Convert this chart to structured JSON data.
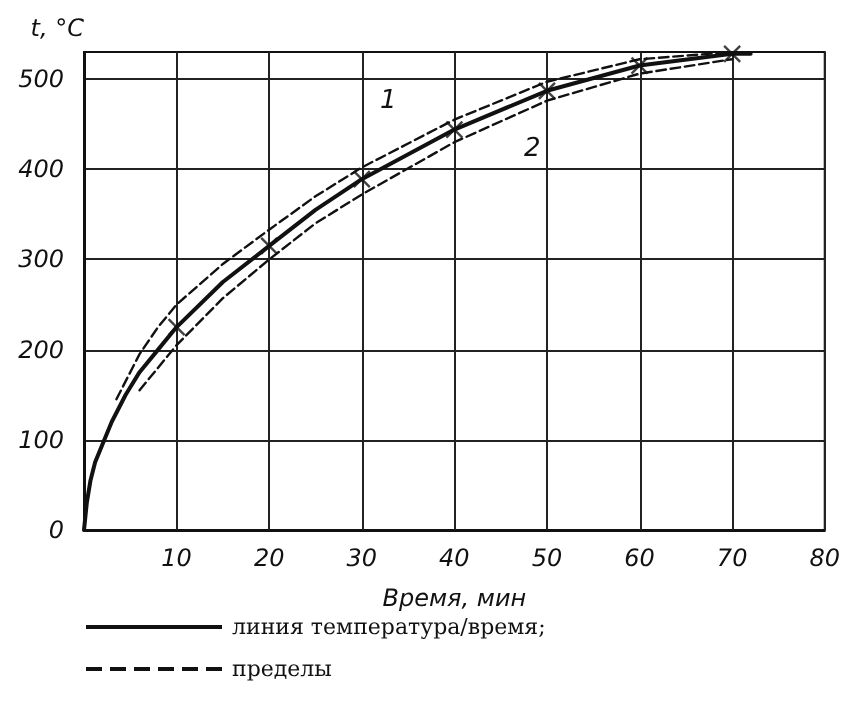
{
  "chart_data": {
    "type": "line",
    "ylabel": "t, °C",
    "xlabel": "Время, мин",
    "xlim": [
      0,
      80
    ],
    "xticks": [
      10,
      20,
      30,
      40,
      50,
      60,
      70,
      80
    ],
    "ylim": [
      0,
      530
    ],
    "yticks": [
      0,
      100,
      200,
      300,
      400,
      500
    ],
    "grid": true,
    "legend": "bottom left",
    "series": [
      {
        "type": "scatter",
        "marker": "cross",
        "color": "#111111",
        "x": [
          10,
          20,
          30,
          40,
          50,
          60,
          70
        ],
        "values": [
          225,
          315,
          389,
          444,
          487,
          515,
          528
        ]
      },
      {
        "name": "линия температура/время;",
        "color": "#111111",
        "line_style": "solid",
        "marker": "none",
        "x": [
          0,
          0.3,
          0.7,
          1.2,
          2,
          3,
          4.5,
          6,
          8,
          10,
          15,
          20,
          25,
          30,
          40,
          50,
          60,
          70,
          72
        ],
        "values": [
          0,
          30,
          55,
          75,
          95,
          120,
          150,
          175,
          200,
          225,
          275,
          315,
          355,
          389,
          444,
          487,
          515,
          528,
          528
        ]
      },
      {
        "name": "пределы",
        "color": "#111111",
        "line_style": "dashed",
        "marker": "none",
        "x": [
          3.5,
          6,
          8,
          10,
          15,
          20,
          25,
          30,
          40,
          50,
          60,
          70
        ],
        "values": [
          145,
          195,
          225,
          250,
          295,
          333,
          370,
          402,
          455,
          497,
          522,
          530
        ]
      },
      {
        "color": "#111111",
        "line_style": "dashed",
        "marker": "none",
        "x": [
          6,
          8,
          10,
          15,
          20,
          25,
          30,
          40,
          50,
          60,
          70
        ],
        "values": [
          155,
          180,
          205,
          257,
          300,
          340,
          372,
          430,
          476,
          506,
          522
        ]
      }
    ],
    "annotations": [
      "1",
      "2"
    ]
  }
}
